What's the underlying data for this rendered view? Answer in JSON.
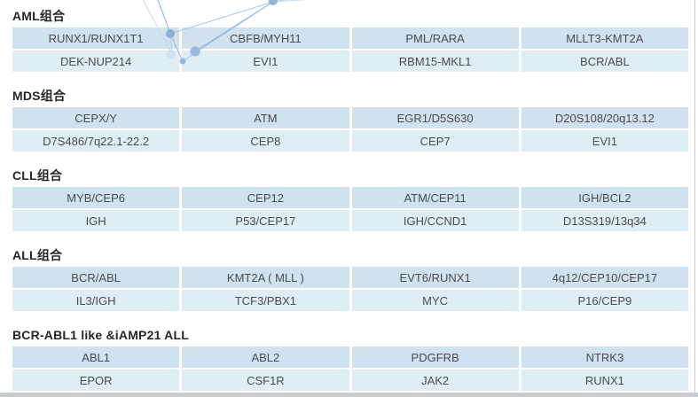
{
  "page": {
    "background": "#ffffff",
    "bottom_bar_color": "#c9cdcf",
    "right_edge_color": "#cccccc"
  },
  "decoration": {
    "name": "network-molecule-graphic",
    "line_color": "#9dbede",
    "line_color_faint": "#c6daec",
    "node_color": "#8fb5d9",
    "node_color_light": "#cfe0ef"
  },
  "colors": {
    "row_primary": "#cfe2ee",
    "row_secondary": "#dfedf5",
    "cell_text": "#4c4c4c",
    "heading_text": "#262626"
  },
  "sections": [
    {
      "title": "AML组合",
      "rows": [
        [
          "RUNX1/RUNX1T1",
          "CBFB/MYH11",
          "PML/RARA",
          "MLLT3-KMT2A"
        ],
        [
          "DEK-NUP214",
          "EVI1",
          "RBM15-MKL1",
          "BCR/ABL"
        ]
      ]
    },
    {
      "title": "MDS组合",
      "rows": [
        [
          "CEPX/Y",
          "ATM",
          "EGR1/D5S630",
          "D20S108/20q13.12"
        ],
        [
          "D7S486/7q22.1-22.2",
          "CEP8",
          "CEP7",
          "EVI1"
        ]
      ]
    },
    {
      "title": "CLL组合",
      "rows": [
        [
          "MYB/CEP6",
          "CEP12",
          "ATM/CEP11",
          "IGH/BCL2"
        ],
        [
          "IGH",
          "P53/CEP17",
          "IGH/CCND1",
          "D13S319/13q34"
        ]
      ]
    },
    {
      "title": "ALL组合",
      "rows": [
        [
          "BCR/ABL",
          "KMT2A ( MLL )",
          "EVT6/RUNX1",
          "4q12/CEP10/CEP17"
        ],
        [
          "IL3/IGH",
          "TCF3/PBX1",
          "MYC",
          "P16/CEP9"
        ]
      ]
    },
    {
      "title": "BCR-ABL1 like &iAMP21 ALL",
      "rows": [
        [
          "ABL1",
          "ABL2",
          "PDGFRB",
          "NTRK3"
        ],
        [
          "EPOR",
          "CSF1R",
          "JAK2",
          "RUNX1"
        ]
      ]
    }
  ]
}
